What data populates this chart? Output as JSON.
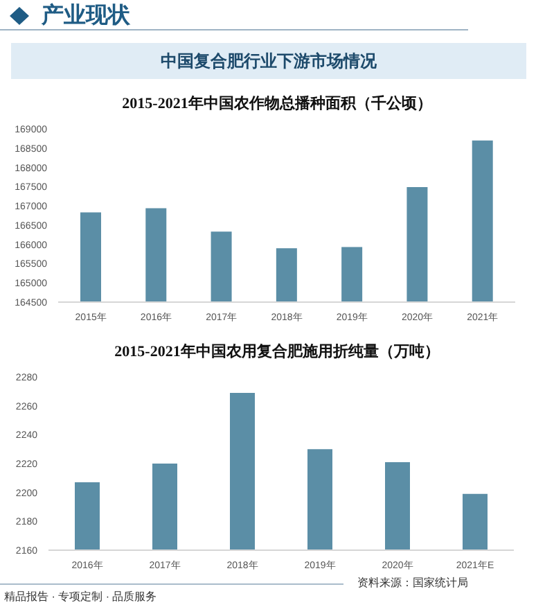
{
  "chart_data": [
    {
      "type": "bar",
      "title": "2015-2021年中国农作物总播种面积（千公顷）",
      "annotations": [
        "产业现状",
        "中国复合肥行业下游市场情况"
      ],
      "categories": [
        "2015年",
        "2016年",
        "2017年",
        "2018年",
        "2019年",
        "2020年",
        "2021年"
      ],
      "values": [
        166830,
        166940,
        166330,
        165900,
        165930,
        167490,
        168700
      ],
      "color": "#5b8ea6",
      "ylim": [
        164500,
        169000
      ],
      "yticks": [
        164500,
        165000,
        165500,
        166000,
        166500,
        167000,
        167500,
        168000,
        168500,
        169000
      ]
    },
    {
      "type": "bar",
      "title": "2015-2021年中国农用复合肥施用折纯量（万吨）",
      "annotations": [
        "精品报告 · 专项定制 · 品质服务",
        "资料来源：国家统计局"
      ],
      "categories": [
        "2016年",
        "2017年",
        "2018年",
        "2019年",
        "2020年",
        "2021年E"
      ],
      "values": [
        2207,
        2220,
        2269,
        2230,
        2221,
        2199
      ],
      "color": "#5b8ea6",
      "ylim": [
        2160,
        2280
      ],
      "yticks": [
        2160,
        2180,
        2200,
        2220,
        2240,
        2260,
        2280
      ]
    }
  ]
}
